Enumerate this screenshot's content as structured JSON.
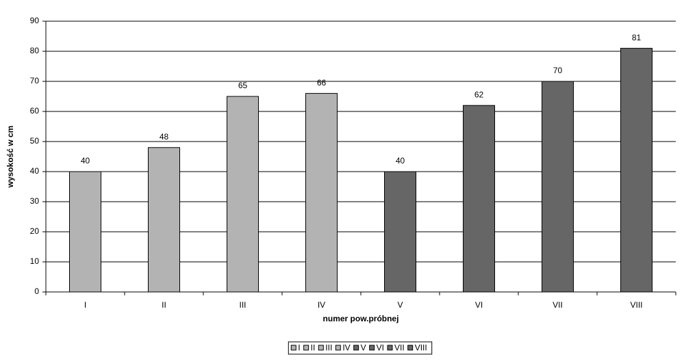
{
  "chart_data": {
    "type": "bar",
    "categories": [
      "I",
      "II",
      "III",
      "IV",
      "V",
      "VI",
      "VII",
      "VIII"
    ],
    "values": [
      40,
      48,
      65,
      66,
      40,
      62,
      70,
      81
    ],
    "colors": [
      "#b3b3b3",
      "#b3b3b3",
      "#b3b3b3",
      "#b3b3b3",
      "#666666",
      "#666666",
      "#666666",
      "#666666"
    ],
    "x_label": "numer pow.próbnej",
    "y_label": "wysokość w cm",
    "ylim": [
      0,
      90
    ],
    "yticks": [
      0,
      10,
      20,
      30,
      40,
      50,
      60,
      70,
      80,
      90
    ],
    "grid": true,
    "legend": "bottom"
  }
}
